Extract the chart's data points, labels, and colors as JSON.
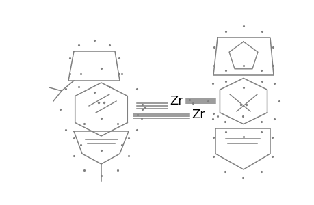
{
  "bg_color": "#ffffff",
  "line_color": "#808080",
  "dot_color": "#808080",
  "zr_color": "#000000",
  "zr_fontsize": 13,
  "figsize": [
    4.6,
    3.0
  ],
  "dpi": 100
}
